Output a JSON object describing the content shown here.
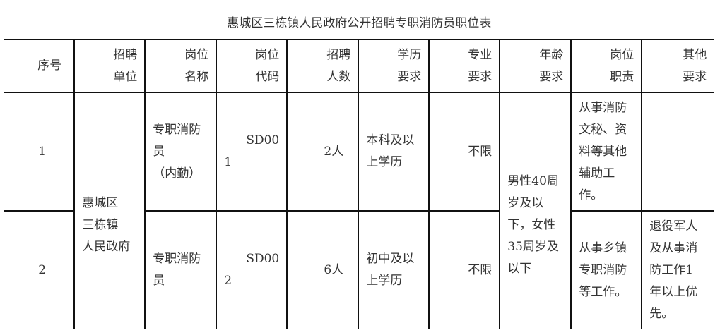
{
  "title": "惠城区三栋镇人民政府公开招聘专职消防员职位表",
  "headers": [
    "序号",
    "招聘\n单位",
    "岗位\n名称",
    "岗位\n代码",
    "招聘\n人数",
    "学历\n要求",
    "专业\n要求",
    "年龄\n要求",
    "岗位\n职责",
    "其他\n要求"
  ],
  "unit": "惠城区\n三栋镇\n人民政府",
  "age": "男性40周\n岁及以\n下，女性\n35周岁及\n以下",
  "rows": [
    {
      "no": "1",
      "name": "专职消防\n员\n（内勤）",
      "code": "SD00\n1",
      "count": "2人",
      "edu": "本科及以\n上学历",
      "major": "不限",
      "duty": "从事消防\n文秘、资\n料等其他\n辅助工\n作。",
      "other": ""
    },
    {
      "no": "2",
      "name": "专职消防\n员",
      "code": "SD00\n2",
      "count": "6人",
      "edu": "初中及以\n上学历",
      "major": "不限",
      "duty": "从事乡镇\n专职消防\n等工作。",
      "other": "退役军人\n及从事消\n防工作1\n年以上优\n先。"
    }
  ]
}
